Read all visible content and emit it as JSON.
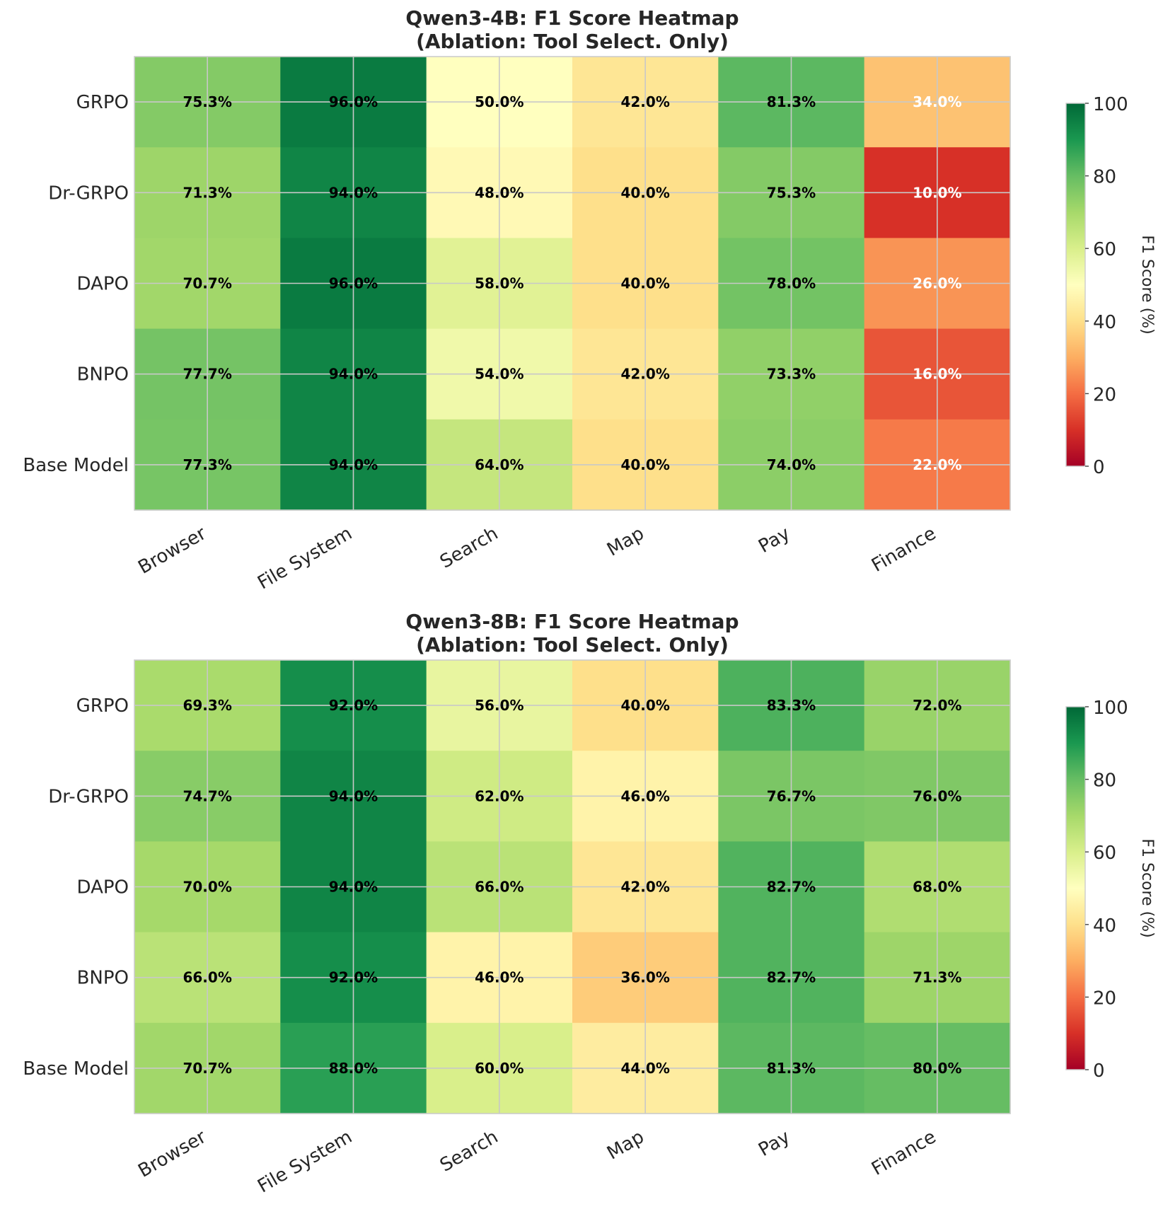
{
  "colorbar": {
    "label": "F1 Score (%)",
    "ticks": [
      0,
      20,
      40,
      60,
      80,
      100
    ],
    "range": [
      0,
      100
    ],
    "colormap": "RdYlGn"
  },
  "chart_data": [
    {
      "type": "heatmap",
      "title_line1": "Qwen3-4B: F1 Score Heatmap",
      "title_line2": "(Ablation: Tool Select. Only)",
      "rows": [
        "GRPO",
        "Dr-GRPO",
        "DAPO",
        "BNPO",
        "Base Model"
      ],
      "columns": [
        "Browser",
        "File System",
        "Search",
        "Map",
        "Pay",
        "Finance"
      ],
      "values": [
        [
          75.3,
          96.0,
          50.0,
          42.0,
          81.3,
          34.0
        ],
        [
          71.3,
          94.0,
          48.0,
          40.0,
          75.3,
          10.0
        ],
        [
          70.7,
          96.0,
          58.0,
          40.0,
          78.0,
          26.0
        ],
        [
          77.7,
          94.0,
          54.0,
          42.0,
          73.3,
          16.0
        ],
        [
          77.3,
          94.0,
          64.0,
          40.0,
          74.0,
          22.0
        ]
      ],
      "value_format": "{v}%",
      "vmin": 0,
      "vmax": 100,
      "grid": true
    },
    {
      "type": "heatmap",
      "title_line1": "Qwen3-8B: F1 Score Heatmap",
      "title_line2": "(Ablation: Tool Select. Only)",
      "rows": [
        "GRPO",
        "Dr-GRPO",
        "DAPO",
        "BNPO",
        "Base Model"
      ],
      "columns": [
        "Browser",
        "File System",
        "Search",
        "Map",
        "Pay",
        "Finance"
      ],
      "values": [
        [
          69.3,
          92.0,
          56.0,
          40.0,
          83.3,
          72.0
        ],
        [
          74.7,
          94.0,
          62.0,
          46.0,
          76.7,
          76.0
        ],
        [
          70.0,
          94.0,
          66.0,
          42.0,
          82.7,
          68.0
        ],
        [
          66.0,
          92.0,
          46.0,
          36.0,
          82.7,
          71.3
        ],
        [
          70.7,
          88.0,
          60.0,
          44.0,
          81.3,
          80.0
        ]
      ],
      "value_format": "{v}%",
      "vmin": 0,
      "vmax": 100,
      "grid": true
    }
  ]
}
